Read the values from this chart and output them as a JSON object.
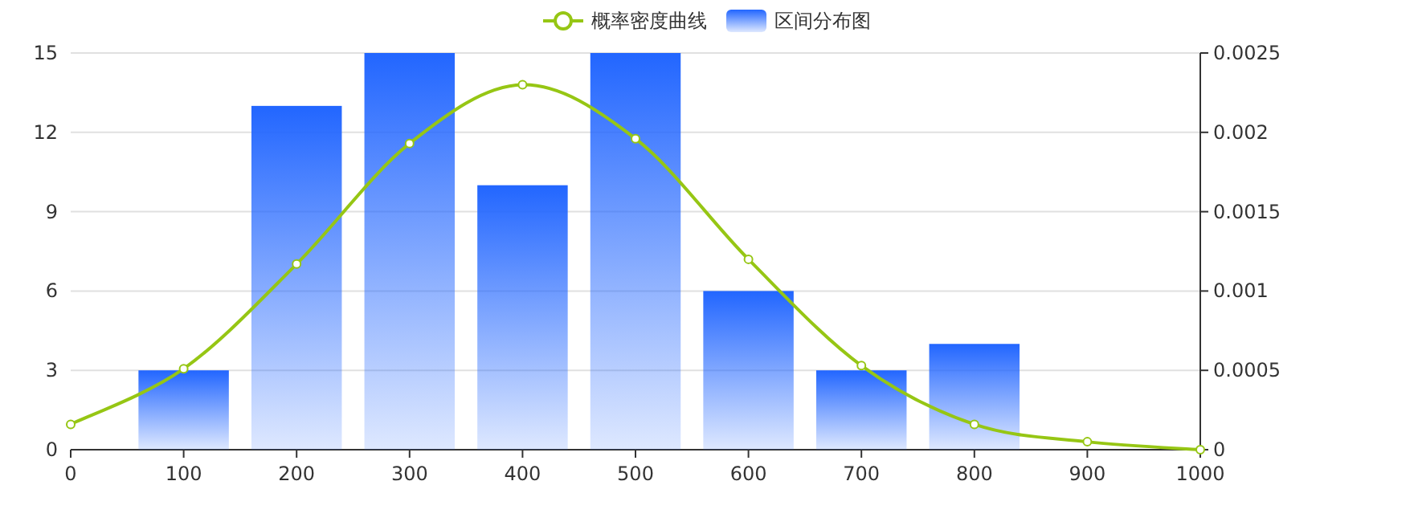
{
  "chart_data": {
    "type": "bar",
    "legend": "top",
    "grid": "y",
    "xlim": [
      0,
      1000
    ],
    "xticks": [
      0,
      100,
      200,
      300,
      400,
      500,
      600,
      700,
      800,
      900,
      1000
    ],
    "ylim": [
      0,
      15
    ],
    "yticks": [
      0,
      3,
      6,
      9,
      12,
      15
    ],
    "y2lim": [
      0,
      0.0025
    ],
    "y2ticks": [
      0,
      0.0005,
      0.001,
      0.0015,
      0.002,
      0.0025
    ],
    "series": [
      {
        "name": "概率密度曲线",
        "type": "line",
        "axis": "y2",
        "color": "#96c614",
        "marker": "circle",
        "line_style": "solid",
        "x": [
          0,
          100,
          200,
          300,
          400,
          500,
          600,
          700,
          800,
          900,
          1000
        ],
        "values": [
          0.00016,
          0.00051,
          0.00117,
          0.00193,
          0.0023,
          0.00196,
          0.0012,
          0.00053,
          0.00016,
          5e-05,
          0
        ]
      },
      {
        "name": "区间分布图",
        "color": "#2266ff",
        "x": [
          100,
          200,
          300,
          400,
          500,
          600,
          700,
          800
        ],
        "values": [
          3,
          13,
          15,
          10,
          15,
          6,
          3,
          4
        ]
      }
    ]
  }
}
